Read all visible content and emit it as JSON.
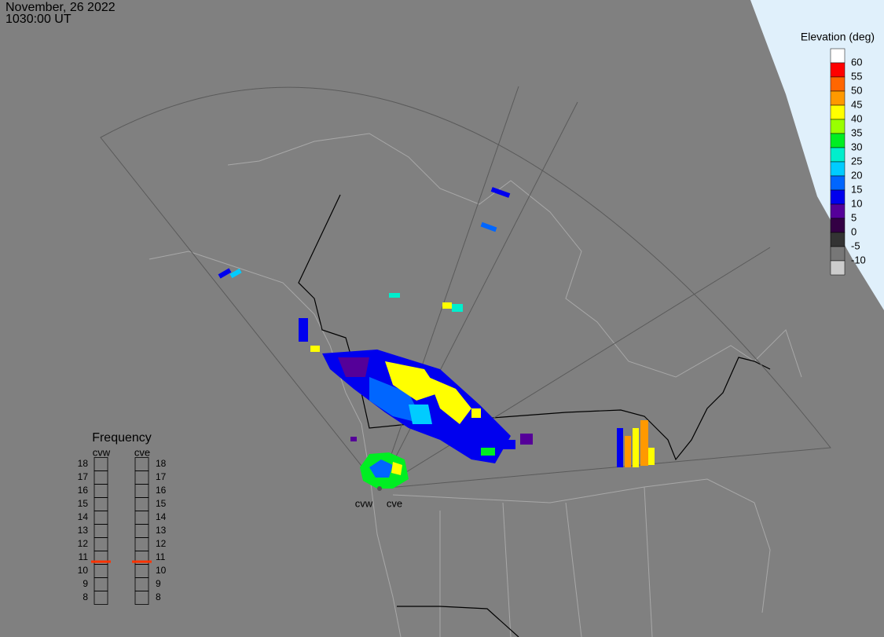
{
  "header": {
    "date": "November, 26 2022",
    "time": "1030:00 UT"
  },
  "elevation_scale": {
    "title": "Elevation (deg)",
    "labels": [
      60,
      55,
      50,
      45,
      40,
      35,
      30,
      25,
      20,
      15,
      10,
      5,
      0,
      -5,
      -10
    ],
    "colors": [
      "#ffffff",
      "#ff0000",
      "#ff6600",
      "#ff9900",
      "#ffff00",
      "#99ff00",
      "#00ee22",
      "#00eecc",
      "#00ccff",
      "#0066ff",
      "#0000ee",
      "#550099",
      "#330044",
      "#333333",
      "#777777",
      "#cccccc"
    ]
  },
  "frequency": {
    "title": "Frequency",
    "ticks": [
      18,
      17,
      16,
      15,
      14,
      13,
      12,
      11,
      10,
      9,
      8
    ],
    "marker_color": "#ff3300",
    "radars": [
      {
        "name": "cvw",
        "value": 10.7
      },
      {
        "name": "cve",
        "value": 10.7
      }
    ]
  },
  "map": {
    "radar_labels": [
      "cvw",
      "cve"
    ]
  }
}
